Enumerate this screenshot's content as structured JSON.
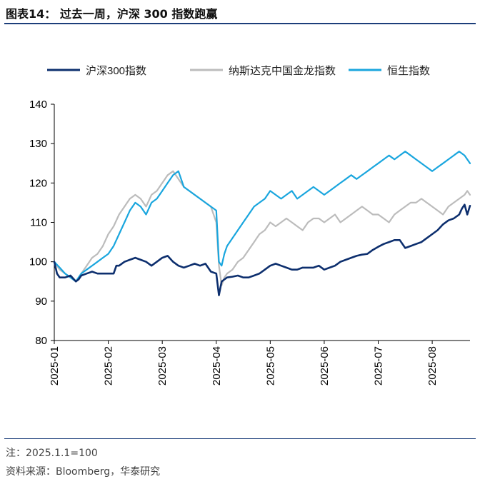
{
  "title": "图表14：  过去一周，沪深 300 指数跑赢",
  "note": "注：2025.1.1=100",
  "source": "资料来源：Bloomberg，华泰研究",
  "chart_data": {
    "type": "line",
    "ylim": [
      80,
      140
    ],
    "yticks": [
      80,
      90,
      100,
      110,
      120,
      130,
      140
    ],
    "xlim": [
      0,
      7.7
    ],
    "xticks": [
      0,
      1,
      2,
      3,
      4,
      5,
      6,
      7
    ],
    "xtick_labels": [
      "2025-01",
      "2025-02",
      "2025-03",
      "2025-04",
      "2025-05",
      "2025-06",
      "2025-07",
      "2025-08"
    ],
    "grid": false,
    "legend_position": "top",
    "series": [
      {
        "name": "沪深300指数",
        "color": "#0d2f6e",
        "x": [
          0,
          0.05,
          0.1,
          0.2,
          0.3,
          0.4,
          0.45,
          0.5,
          0.6,
          0.7,
          0.8,
          0.9,
          1.0,
          1.1,
          1.15,
          1.2,
          1.3,
          1.4,
          1.5,
          1.6,
          1.7,
          1.8,
          1.9,
          2.0,
          2.1,
          2.2,
          2.3,
          2.4,
          2.5,
          2.6,
          2.7,
          2.8,
          2.9,
          3.0,
          3.05,
          3.1,
          3.15,
          3.2,
          3.3,
          3.4,
          3.5,
          3.6,
          3.7,
          3.8,
          3.9,
          4.0,
          4.1,
          4.2,
          4.3,
          4.4,
          4.5,
          4.6,
          4.7,
          4.8,
          4.9,
          5.0,
          5.1,
          5.2,
          5.3,
          5.4,
          5.5,
          5.6,
          5.7,
          5.8,
          5.9,
          6.0,
          6.1,
          6.2,
          6.3,
          6.4,
          6.5,
          6.6,
          6.7,
          6.8,
          6.9,
          7.0,
          7.1,
          7.2,
          7.3,
          7.4,
          7.5,
          7.55,
          7.6,
          7.65,
          7.7
        ],
        "y": [
          100,
          97,
          96,
          96,
          96.5,
          95,
          95.5,
          96.5,
          97,
          97.5,
          97,
          97,
          97,
          97,
          99,
          99,
          100,
          100.5,
          101,
          100.5,
          100,
          99,
          100,
          101,
          101.5,
          100,
          99,
          98.5,
          99,
          99.5,
          99,
          99.5,
          97.5,
          97,
          91.5,
          95,
          95.5,
          96,
          96.2,
          96.5,
          96,
          96,
          96.5,
          97,
          98,
          99,
          99.5,
          99,
          98.5,
          98,
          98,
          98.5,
          98.5,
          98.5,
          99,
          98,
          98.5,
          99,
          100,
          100.5,
          101,
          101.5,
          101.8,
          102,
          103,
          103.8,
          104.5,
          105,
          105.5,
          105.5,
          103.5,
          104,
          104.5,
          105,
          106,
          107,
          108,
          109.5,
          110.5,
          111,
          112,
          113.5,
          114.5,
          112,
          114.2
        ]
      },
      {
        "name": "纳斯达克中国金龙指数",
        "color": "#bcbcbc",
        "x": [
          0,
          0.1,
          0.2,
          0.3,
          0.4,
          0.5,
          0.6,
          0.7,
          0.8,
          0.9,
          1.0,
          1.1,
          1.2,
          1.3,
          1.4,
          1.5,
          1.6,
          1.7,
          1.8,
          1.9,
          2.0,
          2.1,
          2.2,
          2.3,
          2.4,
          2.5,
          2.6,
          2.7,
          2.8,
          2.9,
          3.0,
          3.05,
          3.1,
          3.15,
          3.2,
          3.3,
          3.4,
          3.5,
          3.6,
          3.7,
          3.8,
          3.9,
          4.0,
          4.1,
          4.2,
          4.3,
          4.4,
          4.5,
          4.6,
          4.7,
          4.8,
          4.9,
          5.0,
          5.1,
          5.2,
          5.3,
          5.4,
          5.5,
          5.6,
          5.7,
          5.8,
          5.9,
          6.0,
          6.1,
          6.2,
          6.3,
          6.4,
          6.5,
          6.6,
          6.7,
          6.8,
          6.9,
          7.0,
          7.1,
          7.2,
          7.3,
          7.4,
          7.5,
          7.6,
          7.65,
          7.7
        ],
        "y": [
          100,
          98,
          97,
          96,
          95,
          97,
          99,
          101,
          102,
          104,
          107,
          109,
          112,
          114,
          116,
          117,
          116,
          114,
          117,
          118,
          120,
          122,
          123,
          121,
          119,
          118,
          117,
          116,
          115,
          114,
          110,
          99,
          94,
          96,
          97,
          98,
          100,
          101,
          103,
          105,
          107,
          108,
          110,
          109,
          110,
          111,
          110,
          109,
          108,
          110,
          111,
          111,
          110,
          111,
          112,
          110,
          111,
          112,
          113,
          114,
          113,
          112,
          112,
          111,
          110,
          112,
          113,
          114,
          115,
          115,
          116,
          115,
          114,
          113,
          112,
          114,
          115,
          116,
          117,
          118,
          117
        ]
      },
      {
        "name": "恒生指数",
        "color": "#1aa6de",
        "x": [
          0,
          0.1,
          0.2,
          0.3,
          0.4,
          0.5,
          0.6,
          0.7,
          0.8,
          0.9,
          1.0,
          1.1,
          1.2,
          1.3,
          1.4,
          1.5,
          1.6,
          1.7,
          1.8,
          1.9,
          2.0,
          2.1,
          2.2,
          2.3,
          2.4,
          2.5,
          2.6,
          2.7,
          2.8,
          2.9,
          3.0,
          3.05,
          3.1,
          3.15,
          3.2,
          3.3,
          3.4,
          3.5,
          3.6,
          3.7,
          3.8,
          3.9,
          4.0,
          4.1,
          4.2,
          4.3,
          4.4,
          4.5,
          4.6,
          4.7,
          4.8,
          4.9,
          5.0,
          5.1,
          5.2,
          5.3,
          5.4,
          5.5,
          5.6,
          5.7,
          5.8,
          5.9,
          6.0,
          6.1,
          6.2,
          6.3,
          6.4,
          6.5,
          6.6,
          6.7,
          6.8,
          6.9,
          7.0,
          7.1,
          7.2,
          7.3,
          7.4,
          7.5,
          7.6,
          7.65,
          7.7
        ],
        "y": [
          100,
          98.5,
          97,
          96,
          95,
          97,
          98,
          99,
          100,
          101,
          102,
          104,
          107,
          110,
          113,
          115,
          114,
          112,
          115,
          116,
          118,
          120,
          122,
          123,
          119,
          118,
          117,
          116,
          115,
          114,
          113,
          100,
          99,
          102,
          104,
          106,
          108,
          110,
          112,
          114,
          115,
          116,
          118,
          117,
          116,
          117,
          118,
          116,
          117,
          118,
          119,
          118,
          117,
          118,
          119,
          120,
          121,
          122,
          121,
          122,
          123,
          124,
          125,
          126,
          127,
          126,
          127,
          128,
          127,
          126,
          125,
          124,
          123,
          124,
          125,
          126,
          127,
          128,
          127,
          126,
          125
        ]
      }
    ]
  }
}
